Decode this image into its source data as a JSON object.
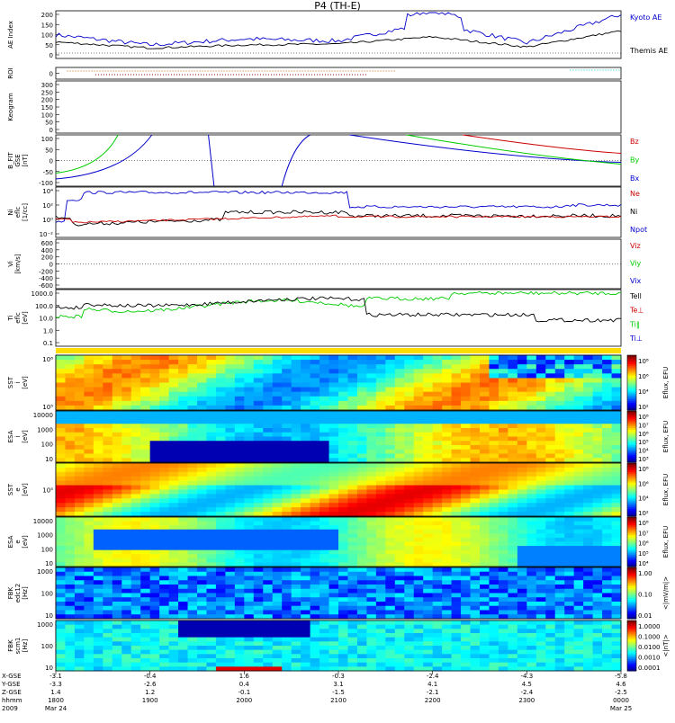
{
  "title": "P4 (TH-E)",
  "colors": {
    "kyoto": "#0000cc",
    "themis": "#000000",
    "red": "#cc0000",
    "green": "#00cc00",
    "blue": "#0000cc"
  },
  "panels": [
    {
      "id": "ae",
      "ylabel": "AE Index",
      "yticks": [
        "200",
        "150",
        "100",
        "50",
        "0"
      ],
      "legend": [
        {
          "text": "Kyoto AE",
          "color": "#0000cc"
        },
        {
          "text": "Themis AE",
          "color": "#000000"
        }
      ]
    },
    {
      "id": "roi",
      "ylabel": "ROI",
      "yticks": [
        "0"
      ],
      "legend": []
    },
    {
      "id": "kp",
      "ylabel": "Keogram",
      "yticks": [
        "300",
        "250",
        "200",
        "150",
        "100",
        "50",
        "0"
      ],
      "legend": []
    },
    {
      "id": "bfit",
      "ylabel": "B_FIT\nGSE\n[nT]",
      "yticks": [
        "100",
        "50",
        "0",
        "-50",
        "-100"
      ],
      "legend": [
        {
          "text": "Bz",
          "color": "#cc0000"
        },
        {
          "text": "By",
          "color": "#00cc00"
        },
        {
          "text": "Bx",
          "color": "#0000cc"
        }
      ]
    },
    {
      "id": "ni",
      "ylabel": "Ni\neflc\n[1/cc]",
      "yticks": [
        "10⁴",
        "10²",
        "10⁰",
        "10⁻²"
      ],
      "legend": [
        {
          "text": "Ne",
          "color": "#cc0000"
        },
        {
          "text": "Ni",
          "color": "#000000"
        },
        {
          "text": "Npot",
          "color": "#0000cc"
        }
      ]
    },
    {
      "id": "vi",
      "ylabel": "Vi\n[km/s]",
      "yticks": [
        "600",
        "400",
        "200",
        "0",
        "-200",
        "-400",
        "-600"
      ],
      "legend": [
        {
          "text": "Viz",
          "color": "#cc0000"
        },
        {
          "text": "Viy",
          "color": "#00cc00"
        },
        {
          "text": "Vix",
          "color": "#0000cc"
        }
      ]
    },
    {
      "id": "ti",
      "ylabel": "Ti\neflc\n[eV]",
      "yticks": [
        "1000.0",
        "100.0",
        "10.0",
        "1.0",
        "0.1"
      ],
      "legend": [
        {
          "text": "Tell",
          "color": "#000000"
        },
        {
          "text": "Te⊥",
          "color": "#cc0000"
        },
        {
          "text": "Ti‖",
          "color": "#00cc00"
        },
        {
          "text": "Ti⊥",
          "color": "#0000cc"
        }
      ]
    },
    {
      "id": "sst_i",
      "ylabel": "SST\ni\n[eV]",
      "yticks": [
        "10⁶",
        "10⁵"
      ],
      "cbar": [
        "10⁸",
        "10⁶",
        "10⁴",
        "10²"
      ],
      "cbar_label": "Eflux, EFU"
    },
    {
      "id": "esa_i",
      "ylabel": "ESA\ni\n[eV]",
      "yticks": [
        "10000",
        "1000",
        "100",
        "10"
      ],
      "cbar": [
        "10⁸",
        "10⁷",
        "10⁶",
        "10⁵",
        "10⁴",
        "10³"
      ],
      "cbar_label": "Eflux, EFU"
    },
    {
      "id": "sst_e",
      "ylabel": "SST\ne\n[eV]",
      "yticks": [
        "10⁵"
      ],
      "cbar": [
        "10⁸",
        "10⁶",
        "10⁴",
        "10²"
      ],
      "cbar_label": "Eflux, EFU"
    },
    {
      "id": "esa_e",
      "ylabel": "ESA\ne\n[eV]",
      "yticks": [
        "10000",
        "1000",
        "100",
        "10"
      ],
      "cbar": [
        "10⁸",
        "10⁷",
        "10⁶",
        "10⁵",
        "10⁴"
      ],
      "cbar_label": "Eflux, EFU"
    },
    {
      "id": "fbk_e",
      "ylabel": "FBK\nedc12\n[Hz]",
      "yticks": [
        "1000",
        "100",
        "10"
      ],
      "cbar": [
        "1.00",
        "0.10",
        "0.01"
      ],
      "cbar_label": "<|mV/m|>"
    },
    {
      "id": "fbk_b",
      "ylabel": "FBK\nscm1\n[Hz]",
      "yticks": [
        "1000",
        "100",
        "10"
      ],
      "cbar": [
        "1.0000",
        "0.1000",
        "0.0100",
        "0.0010",
        "0.0001"
      ],
      "cbar_label": "<|nT|>"
    }
  ],
  "xaxis": {
    "row_labels": [
      "X-GSE",
      "Y-GSE",
      "Z-GSE",
      "hhmm",
      "2009"
    ],
    "columns": [
      {
        "vals": [
          "-3.1",
          "-3.3",
          "1.4",
          "1800",
          "Mar 24"
        ]
      },
      {
        "vals": [
          "-0.4",
          "-2.6",
          "1.2",
          "1900",
          ""
        ]
      },
      {
        "vals": [
          "1.6",
          "0.4",
          "-0.1",
          "2000",
          ""
        ]
      },
      {
        "vals": [
          "-0.3",
          "3.1",
          "-1.5",
          "2100",
          ""
        ]
      },
      {
        "vals": [
          "-2.4",
          "4.1",
          "-2.1",
          "2200",
          ""
        ]
      },
      {
        "vals": [
          "-4.3",
          "4.5",
          "-2.4",
          "2300",
          ""
        ]
      },
      {
        "vals": [
          "-5.8",
          "4.6",
          "-2.5",
          "0000",
          "Mar 25"
        ]
      }
    ]
  },
  "chart_data": {
    "type": "line",
    "title": "P4 (TH-E)",
    "x": [
      "1800",
      "1900",
      "2000",
      "2100",
      "2200",
      "2300",
      "0000"
    ],
    "series": [
      {
        "name": "Kyoto AE",
        "values": [
          90,
          40,
          70,
          60,
          150,
          50,
          190
        ]
      },
      {
        "name": "Themis AE",
        "values": [
          55,
          25,
          40,
          45,
          80,
          30,
          110
        ]
      }
    ],
    "ylabel": "AE Index",
    "ylim": [
      0,
      200
    ]
  }
}
